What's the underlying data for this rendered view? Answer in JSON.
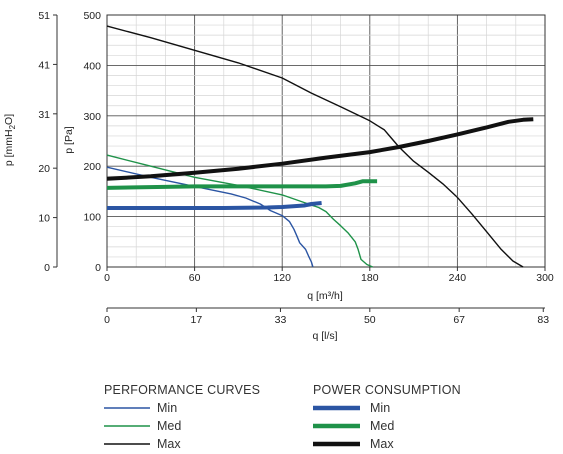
{
  "chart_data": {
    "type": "line",
    "x_axes": {
      "primary": {
        "label": "q [m³/h]",
        "range": [
          0,
          300
        ],
        "ticks": [
          "0",
          "60",
          "120",
          "180",
          "240",
          "300"
        ]
      },
      "secondary": {
        "label": "q [l/s]",
        "range": [
          0,
          83.33
        ],
        "ticks": [
          {
            "value": 0,
            "label": "0"
          },
          {
            "value": 17,
            "label": "17"
          },
          {
            "value": 33,
            "label": "33"
          },
          {
            "value": 50,
            "label": "50"
          },
          {
            "value": 67,
            "label": "67"
          },
          {
            "value": 83,
            "label": "83"
          }
        ]
      }
    },
    "y_axes": {
      "primary": {
        "label": "p [Pa]",
        "range": [
          0,
          500
        ],
        "ticks": [
          "0",
          "100",
          "200",
          "300",
          "400",
          "500"
        ]
      },
      "secondary": {
        "label_main": "p  [mmH",
        "label_sub": "2",
        "label_end": "O]",
        "range": [
          0,
          51
        ],
        "ticks": [
          "0",
          "10",
          "20",
          "31",
          "41",
          "51"
        ]
      }
    },
    "grid": true,
    "legend": {
      "performance_title": "PERFORMANCE CURVES",
      "power_title": "POWER CONSUMPTION",
      "items": [
        "Min",
        "Med",
        "Max"
      ]
    },
    "colors": {
      "Min": "#2b55a3",
      "Med": "#1f9249",
      "Max": "#111111"
    },
    "performance_curves": [
      {
        "name": "Min",
        "points": [
          [
            0,
            198
          ],
          [
            30,
            178
          ],
          [
            60,
            160
          ],
          [
            85,
            145
          ],
          [
            95,
            137
          ],
          [
            105,
            125
          ],
          [
            112,
            112
          ],
          [
            120,
            102
          ],
          [
            125,
            90
          ],
          [
            128,
            75
          ],
          [
            130,
            62
          ],
          [
            132,
            48
          ],
          [
            136,
            35
          ],
          [
            138,
            22
          ],
          [
            140,
            10
          ],
          [
            141,
            0
          ]
        ]
      },
      {
        "name": "Med",
        "points": [
          [
            0,
            222
          ],
          [
            30,
            200
          ],
          [
            60,
            178
          ],
          [
            90,
            162
          ],
          [
            120,
            143
          ],
          [
            135,
            128
          ],
          [
            145,
            118
          ],
          [
            150,
            110
          ],
          [
            155,
            95
          ],
          [
            160,
            82
          ],
          [
            165,
            68
          ],
          [
            170,
            50
          ],
          [
            172,
            35
          ],
          [
            174,
            15
          ],
          [
            178,
            5
          ],
          [
            182,
            0
          ]
        ]
      },
      {
        "name": "Max",
        "points": [
          [
            0,
            478
          ],
          [
            30,
            455
          ],
          [
            60,
            430
          ],
          [
            90,
            405
          ],
          [
            120,
            375
          ],
          [
            140,
            345
          ],
          [
            160,
            318
          ],
          [
            180,
            290
          ],
          [
            190,
            272
          ],
          [
            195,
            255
          ],
          [
            200,
            238
          ],
          [
            210,
            210
          ],
          [
            220,
            188
          ],
          [
            230,
            165
          ],
          [
            240,
            138
          ],
          [
            250,
            105
          ],
          [
            260,
            70
          ],
          [
            270,
            35
          ],
          [
            278,
            12
          ],
          [
            285,
            0
          ]
        ]
      }
    ],
    "power_curves": [
      {
        "name": "Min",
        "points": [
          [
            0,
            117
          ],
          [
            40,
            117
          ],
          [
            80,
            117
          ],
          [
            110,
            118
          ],
          [
            120,
            119
          ],
          [
            135,
            122
          ],
          [
            140,
            125
          ],
          [
            147,
            127
          ]
        ]
      },
      {
        "name": "Med",
        "points": [
          [
            0,
            157
          ],
          [
            60,
            160
          ],
          [
            120,
            160
          ],
          [
            150,
            160
          ],
          [
            160,
            161
          ],
          [
            170,
            166
          ],
          [
            175,
            170
          ],
          [
            185,
            170
          ]
        ]
      },
      {
        "name": "Max",
        "points": [
          [
            0,
            175
          ],
          [
            30,
            180
          ],
          [
            60,
            187
          ],
          [
            90,
            195
          ],
          [
            120,
            205
          ],
          [
            150,
            217
          ],
          [
            180,
            228
          ],
          [
            200,
            238
          ],
          [
            220,
            250
          ],
          [
            240,
            263
          ],
          [
            260,
            277
          ],
          [
            275,
            288
          ],
          [
            285,
            292
          ],
          [
            292,
            293
          ]
        ]
      }
    ]
  }
}
